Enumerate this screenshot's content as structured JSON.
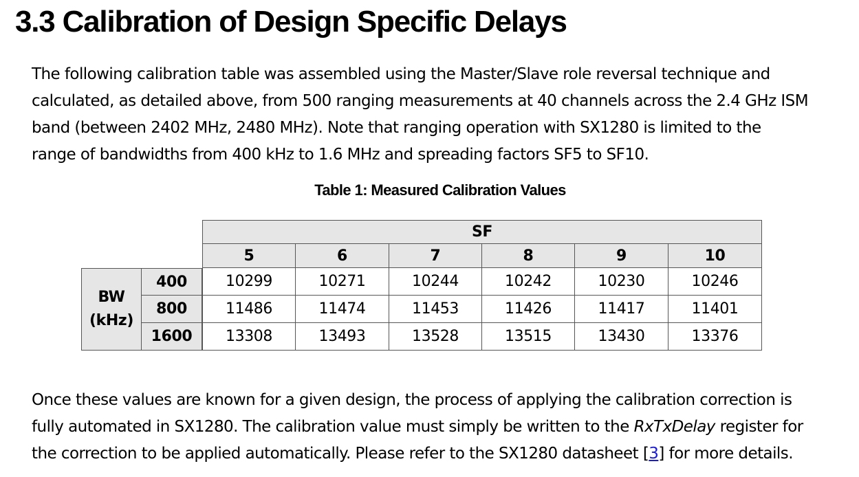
{
  "heading": "3.3 Calibration of Design Specific Delays",
  "intro_lines": [
    "The following calibration table was assembled using the Master/Slave role reversal technique and",
    "calculated, as detailed above, from 500 ranging measurements at 40 channels across the 2.4 GHz ISM",
    "band (between 2402 MHz, 2480 MHz). Note that ranging operation with SX1280 is limited to the",
    "range of bandwidths from 400 kHz to 1.6 MHz and spreading factors SF5 to SF10."
  ],
  "table": {
    "caption": "Table 1: Measured Calibration Values",
    "sf_header": "SF",
    "bw_header_line1": "BW",
    "bw_header_line2": "(kHz)",
    "columns": [
      "5",
      "6",
      "7",
      "8",
      "9",
      "10"
    ],
    "rows": [
      {
        "bw": "400",
        "values": [
          "10299",
          "10271",
          "10244",
          "10242",
          "10230",
          "10246"
        ]
      },
      {
        "bw": "800",
        "values": [
          "11486",
          "11474",
          "11453",
          "11426",
          "11417",
          "11401"
        ]
      },
      {
        "bw": "1600",
        "values": [
          "13308",
          "13493",
          "13528",
          "13515",
          "13430",
          "13376"
        ]
      }
    ]
  },
  "closing": {
    "line1": "Once these values are known for a given design, the process of applying the calibration correction is",
    "line2_pre": "fully automated in SX1280. The calibration value must simply be written to the ",
    "line2_italic": "RxTxDelay",
    "line2_post": " register for",
    "line3_pre": "the correction to be applied automatically. Please refer to the SX1280 datasheet [",
    "line3_link": "3",
    "line3_post": "] for more details."
  }
}
